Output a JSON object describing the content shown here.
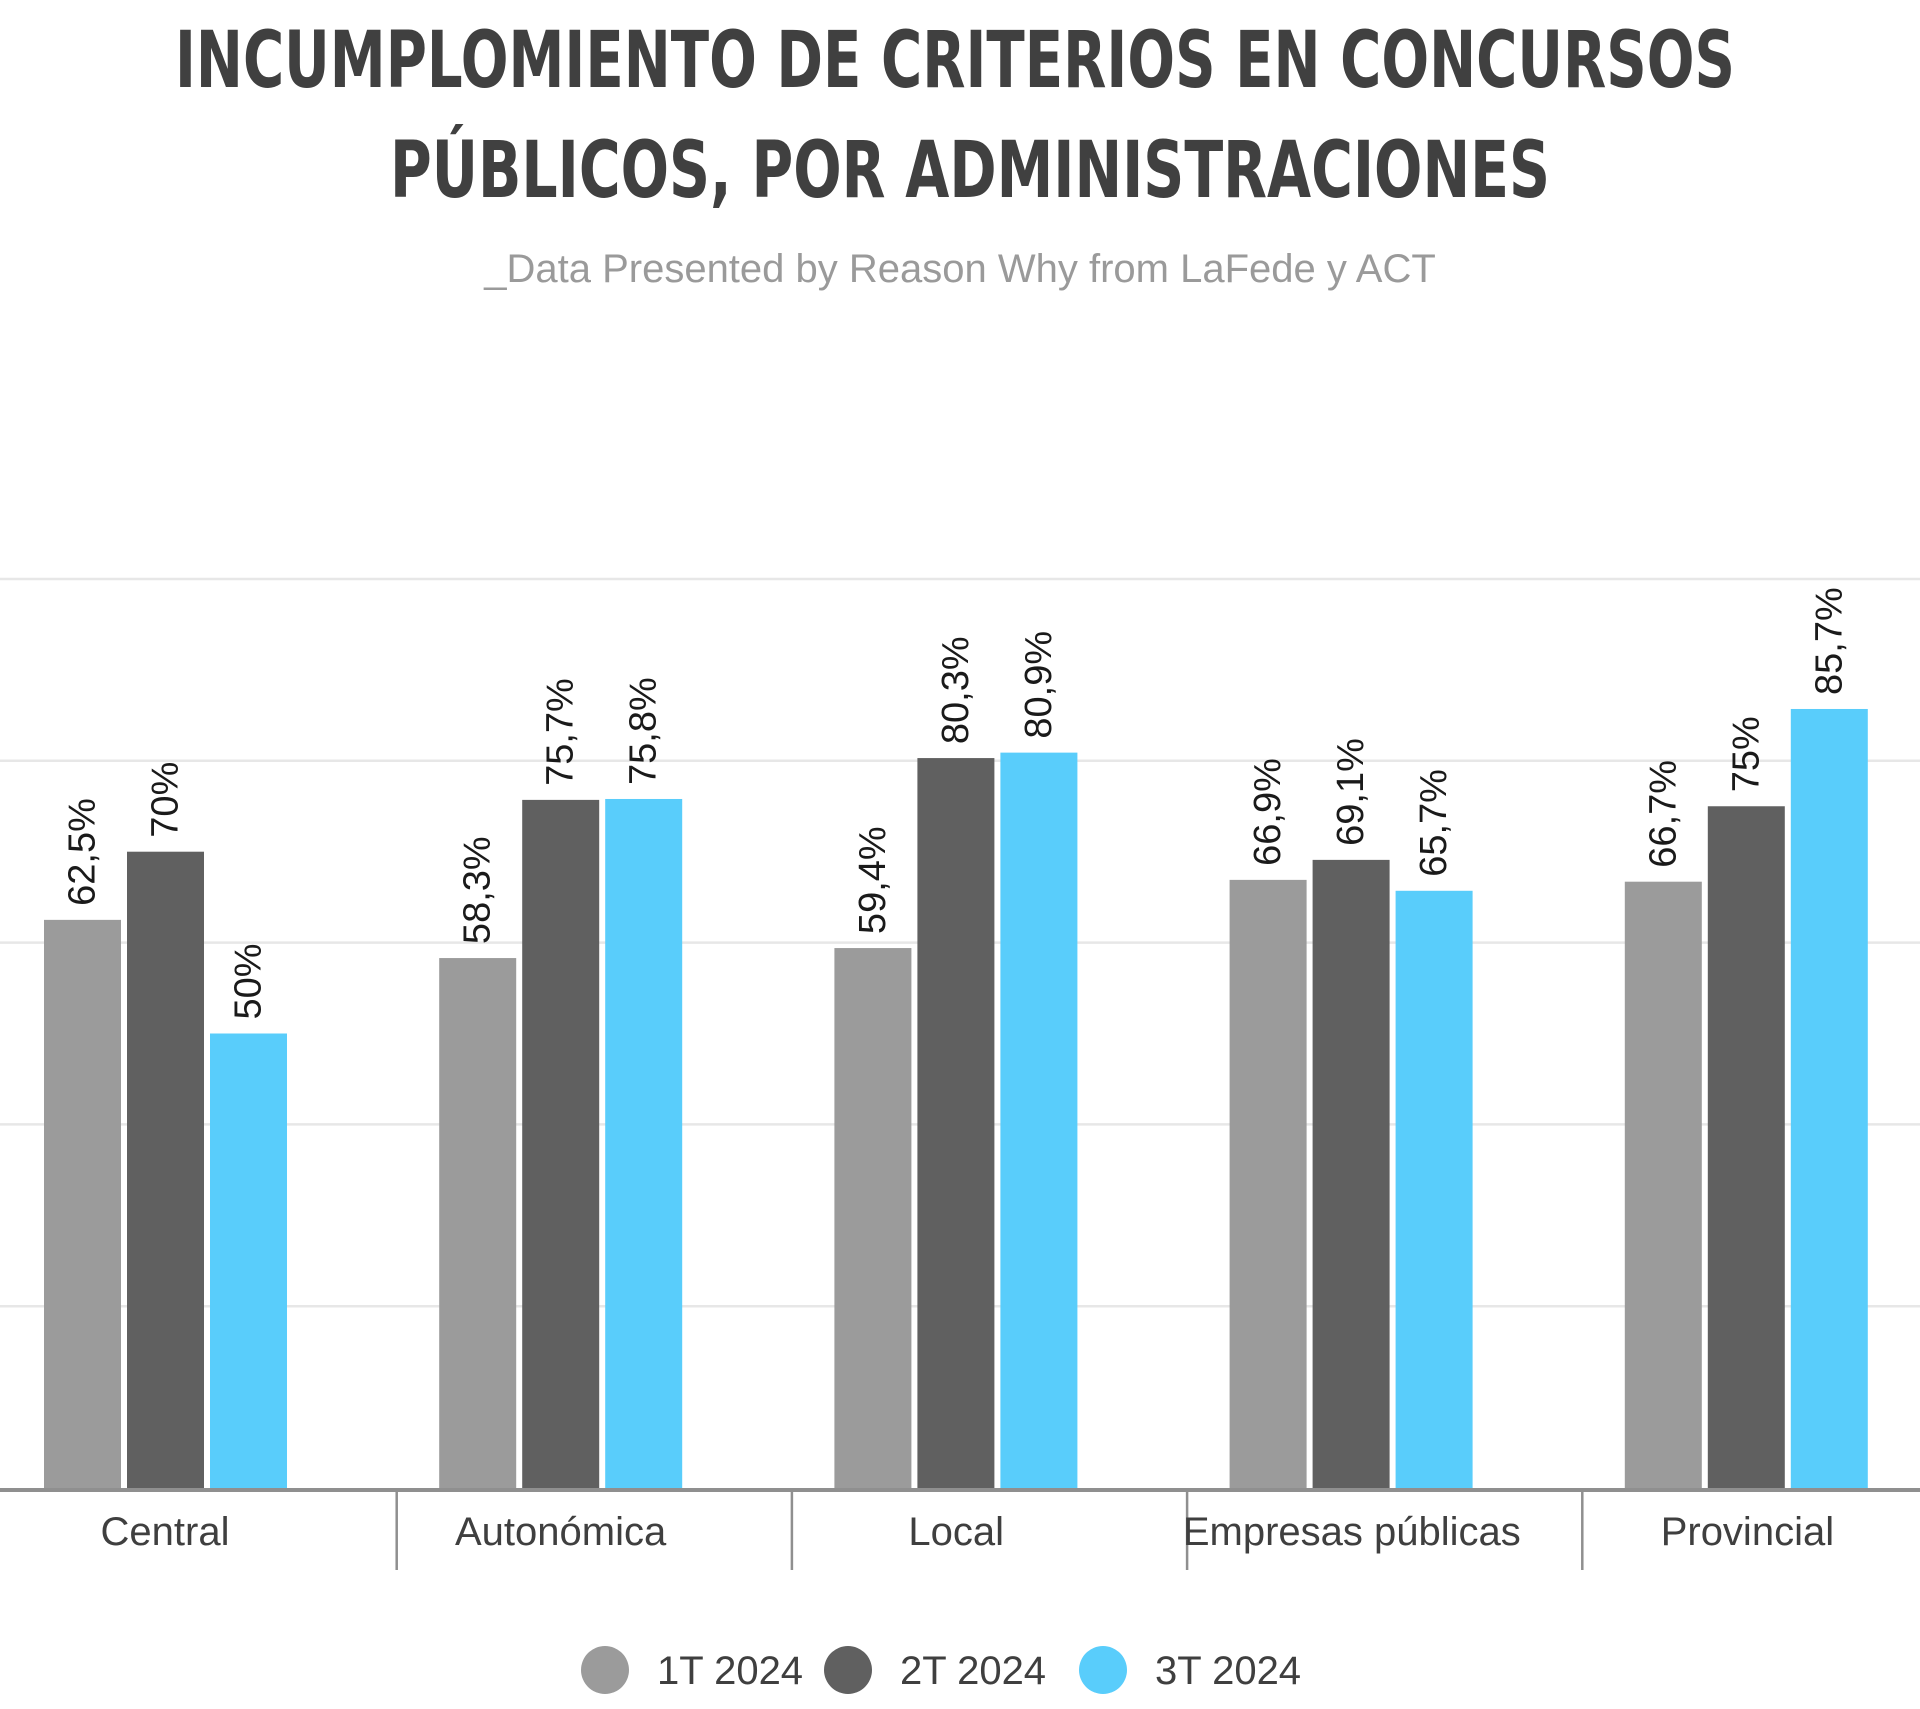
{
  "chart_data": {
    "type": "bar",
    "title_lines": [
      "INCUMPLOMIENTO DE CRITERIOS EN CONCURSOS",
      "PÚBLICOS, POR ADMINISTRACIONES"
    ],
    "subtitle": "_Data Presented by Reason Why from LaFede y ACT",
    "categories": [
      "Central",
      "Autonómica",
      "Local",
      "Empresas públicas",
      "Provincial"
    ],
    "series": [
      {
        "name": "1T 2024",
        "color": "#9b9b9b",
        "values": [
          62.5,
          58.3,
          59.4,
          66.9,
          66.7
        ],
        "labels": [
          "62,5%",
          "58,3%",
          "59,4%",
          "66,9%",
          "66,7%"
        ]
      },
      {
        "name": "2T 2024",
        "color": "#606060",
        "values": [
          70,
          75.7,
          80.3,
          69.1,
          75
        ],
        "labels": [
          "70%",
          "75,7%",
          "80,3%",
          "69,1%",
          "75%"
        ]
      },
      {
        "name": "3T 2024",
        "color": "#59cdfb",
        "values": [
          50,
          75.8,
          80.9,
          65.7,
          85.7
        ],
        "labels": [
          "50%",
          "75,8%",
          "80,9%",
          "65,7%",
          "85,7%"
        ]
      }
    ],
    "ylim": [
      0,
      100
    ],
    "grid": true,
    "legend_position": "bottom"
  }
}
